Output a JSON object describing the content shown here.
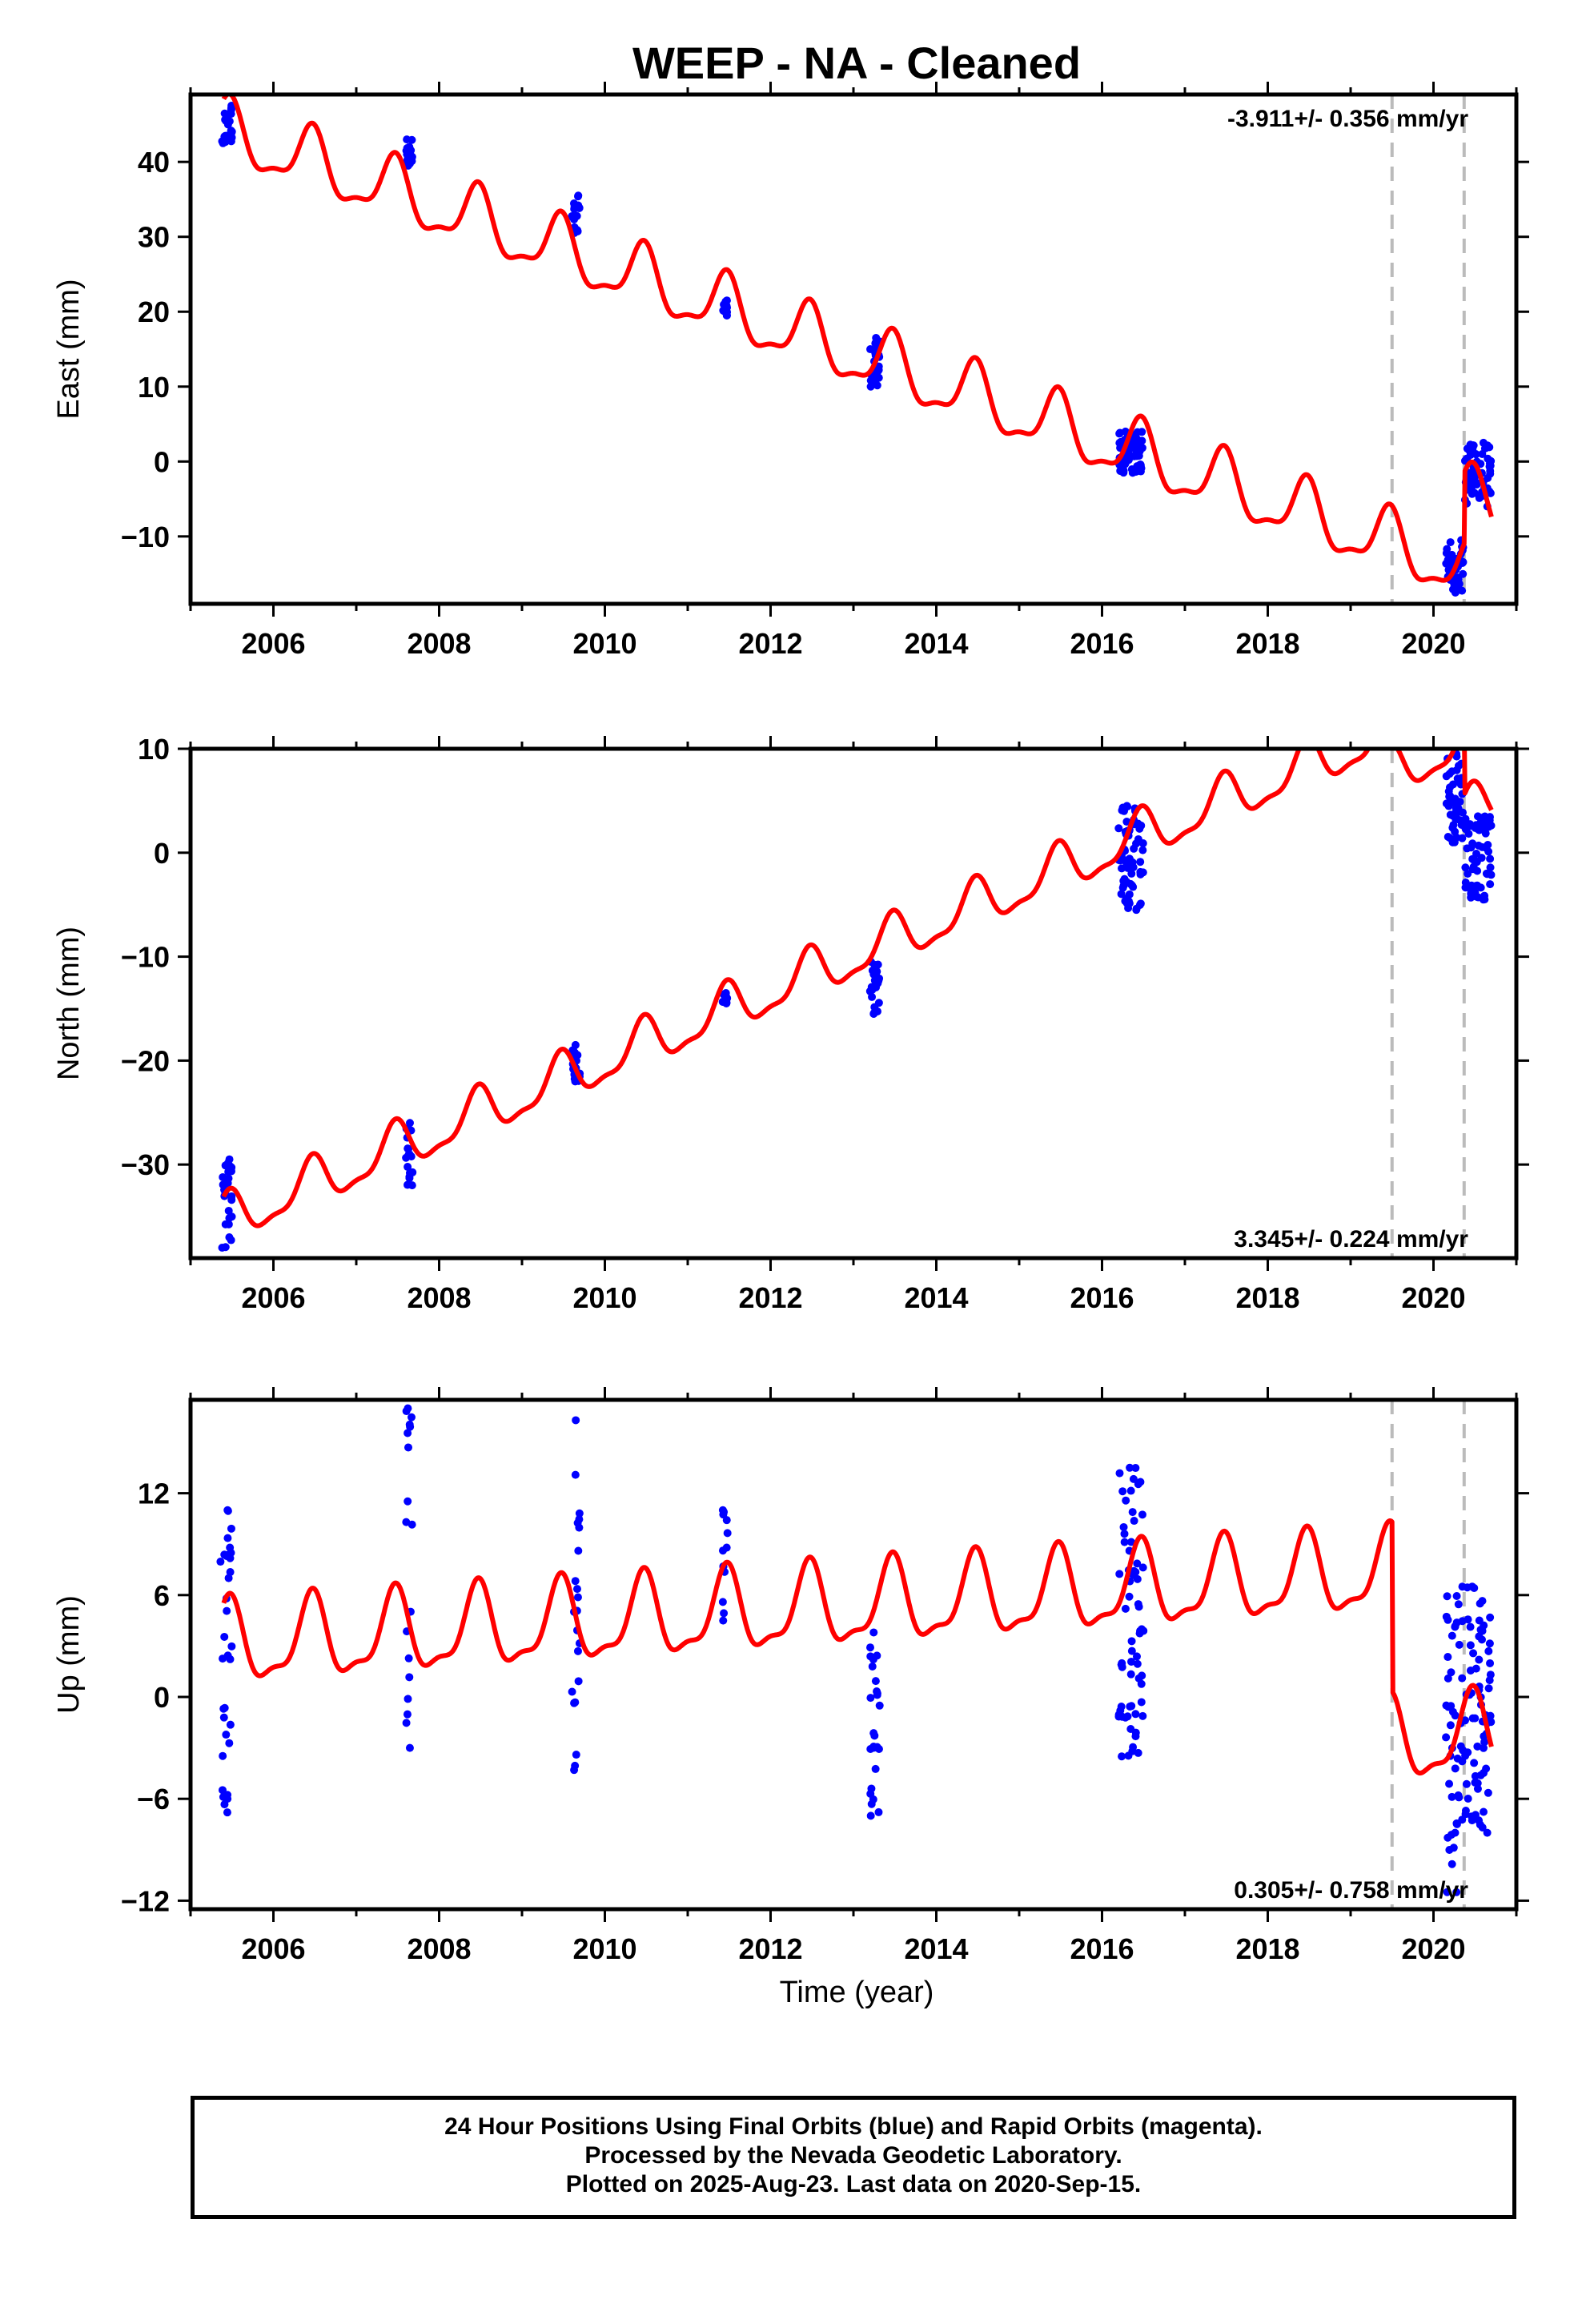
{
  "title": "WEEP  - NA - Cleaned",
  "xlabel": "Time (year)",
  "colors": {
    "data_points": "#0000ff",
    "model_line": "#ff0000",
    "event_lines": "#bbbbbb",
    "axes": "#000000"
  },
  "footer": {
    "line1": "24 Hour Positions Using Final Orbits (blue) and Rapid Orbits (magenta).",
    "line2": "Processed by the Nevada Geodetic Laboratory.",
    "line3": "Plotted on 2025-Aug-23. Last data on 2020-Sep-15."
  },
  "chart_data": [
    {
      "type": "scatter",
      "ylabel": "East (mm)",
      "rate_label": "-3.911+/- 0.356 mm/yr",
      "xlim": [
        2005.0,
        2021.0
      ],
      "ylim": [
        -19,
        49
      ],
      "xticks": [
        2006,
        2008,
        2010,
        2012,
        2014,
        2016,
        2018,
        2020
      ],
      "yticks": [
        -10,
        0,
        10,
        20,
        30,
        40
      ],
      "event_lines": [
        2019.5,
        2020.37
      ],
      "model": {
        "trend_mm_per_yr": -3.911,
        "intercept_2005_4": 44.0,
        "seasonal_amp": 4.0,
        "steps": [
          [
            2020.37,
            9.5
          ]
        ]
      },
      "points": {
        "clusters": [
          {
            "t0": 2005.38,
            "t1": 2005.5,
            "y_min": 42.5,
            "y_max": 47.5
          },
          {
            "t0": 2007.6,
            "t1": 2007.68,
            "y_min": 39.5,
            "y_max": 43.0
          },
          {
            "t0": 2009.6,
            "t1": 2009.7,
            "y_min": 30.5,
            "y_max": 35.5
          },
          {
            "t0": 2011.42,
            "t1": 2011.48,
            "y_min": 19.5,
            "y_max": 21.5
          },
          {
            "t0": 2013.2,
            "t1": 2013.32,
            "y_min": 10.0,
            "y_max": 16.5
          },
          {
            "t0": 2016.2,
            "t1": 2016.5,
            "y_min": -1.5,
            "y_max": 4.0
          },
          {
            "t0": 2020.15,
            "t1": 2020.36,
            "y_min": -17.5,
            "y_max": -10.5
          },
          {
            "t0": 2020.38,
            "t1": 2020.7,
            "y_min": -6.0,
            "y_max": 2.5
          }
        ]
      }
    },
    {
      "type": "scatter",
      "ylabel": "North (mm)",
      "rate_label": "3.345+/- 0.224 mm/yr",
      "xlim": [
        2005.0,
        2021.0
      ],
      "ylim": [
        -39,
        10
      ],
      "xticks": [
        2006,
        2008,
        2010,
        2012,
        2014,
        2016,
        2018,
        2020
      ],
      "yticks": [
        -30,
        -20,
        -10,
        0,
        10
      ],
      "event_lines": [
        2019.5,
        2020.37
      ],
      "model": {
        "trend_mm_per_yr": 3.345,
        "intercept_2005_4": -35.5,
        "seasonal_amp": 2.2,
        "steps": [
          [
            2019.5,
            -4.0
          ],
          [
            2020.37,
            -7.0
          ]
        ]
      },
      "points": {
        "clusters": [
          {
            "t0": 2005.38,
            "t1": 2005.5,
            "y_min": -38.0,
            "y_max": -29.5
          },
          {
            "t0": 2007.6,
            "t1": 2007.68,
            "y_min": -32.0,
            "y_max": -26.0
          },
          {
            "t0": 2009.6,
            "t1": 2009.7,
            "y_min": -22.0,
            "y_max": -18.5
          },
          {
            "t0": 2011.42,
            "t1": 2011.48,
            "y_min": -14.5,
            "y_max": -13.5
          },
          {
            "t0": 2013.2,
            "t1": 2013.32,
            "y_min": -15.5,
            "y_max": -10.5
          },
          {
            "t0": 2016.2,
            "t1": 2016.5,
            "y_min": -5.5,
            "y_max": 4.5
          },
          {
            "t0": 2020.15,
            "t1": 2020.36,
            "y_min": 1.0,
            "y_max": 9.5
          },
          {
            "t0": 2020.38,
            "t1": 2020.7,
            "y_min": -4.5,
            "y_max": 3.5
          }
        ]
      }
    },
    {
      "type": "scatter",
      "ylabel": "Up (mm)",
      "rate_label": "0.305+/- 0.758 mm/yr",
      "xlim": [
        2005.0,
        2021.0
      ],
      "ylim": [
        -12.5,
        17.5
      ],
      "xticks": [
        2006,
        2008,
        2010,
        2012,
        2014,
        2016,
        2018,
        2020
      ],
      "yticks": [
        -12,
        -6,
        0,
        6,
        12
      ],
      "event_lines": [
        2019.5,
        2020.37
      ],
      "model": {
        "trend_mm_per_yr": 0.305,
        "intercept_2005_4": 3.0,
        "seasonal_amp": 2.3,
        "steps": [
          [
            2019.5,
            -10.0
          ],
          [
            2020.37,
            0.0
          ]
        ]
      },
      "points": {
        "clusters": [
          {
            "t0": 2005.35,
            "t1": 2005.5,
            "y_min": -6.8,
            "y_max": 11.0
          },
          {
            "t0": 2007.6,
            "t1": 2007.68,
            "y_min": -3.0,
            "y_max": 17.0
          },
          {
            "t0": 2009.6,
            "t1": 2009.7,
            "y_min": -4.3,
            "y_max": 16.3
          },
          {
            "t0": 2011.42,
            "t1": 2011.48,
            "y_min": 4.5,
            "y_max": 11.0
          },
          {
            "t0": 2013.2,
            "t1": 2013.32,
            "y_min": -7.0,
            "y_max": 3.8
          },
          {
            "t0": 2016.2,
            "t1": 2016.5,
            "y_min": -3.5,
            "y_max": 13.5
          },
          {
            "t0": 2020.15,
            "t1": 2020.36,
            "y_min": -11.5,
            "y_max": 6.5
          },
          {
            "t0": 2020.38,
            "t1": 2020.7,
            "y_min": -8.0,
            "y_max": 6.5
          }
        ]
      }
    }
  ]
}
